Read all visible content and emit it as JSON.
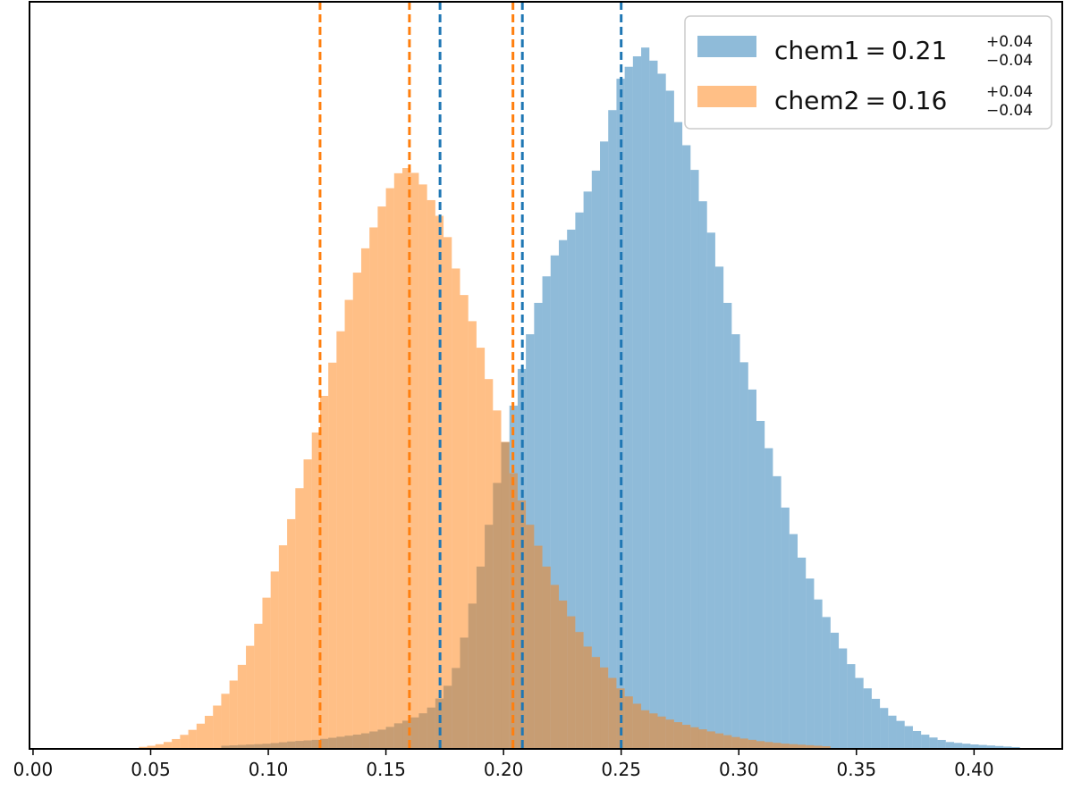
{
  "chart_data": {
    "type": "histogram",
    "x_ticks": [
      "0.00",
      "0.05",
      "0.10",
      "0.15",
      "0.20",
      "0.25",
      "0.30",
      "0.35",
      "0.40"
    ],
    "xlim": [
      -0.0015,
      0.4375
    ],
    "ylim": [
      0,
      1.0
    ],
    "y_axis_visible": false,
    "grid": false,
    "legend_position": "top-right",
    "bin_width": 0.0035,
    "series": [
      {
        "name": "chem1",
        "label_value": "0.21",
        "label_sup": "+0.04",
        "label_sub": "−0.04",
        "color": "#1f77b4",
        "fill": "#8fbbd9",
        "dashed_lines_x": [
          0.173,
          0.208,
          0.25
        ],
        "hist": [
          [
            0.08,
            0.004
          ],
          [
            0.1,
            0.007
          ],
          [
            0.11,
            0.01
          ],
          [
            0.12,
            0.012
          ],
          [
            0.13,
            0.016
          ],
          [
            0.14,
            0.02
          ],
          [
            0.15,
            0.027
          ],
          [
            0.155,
            0.034
          ],
          [
            0.16,
            0.039
          ],
          [
            0.165,
            0.046
          ],
          [
            0.17,
            0.057
          ],
          [
            0.175,
            0.076
          ],
          [
            0.18,
            0.11
          ],
          [
            0.185,
            0.17
          ],
          [
            0.19,
            0.24
          ],
          [
            0.195,
            0.32
          ],
          [
            0.2,
            0.4
          ],
          [
            0.205,
            0.47
          ],
          [
            0.21,
            0.54
          ],
          [
            0.215,
            0.6
          ],
          [
            0.22,
            0.65
          ],
          [
            0.225,
            0.68
          ],
          [
            0.23,
            0.7
          ],
          [
            0.24,
            0.78
          ],
          [
            0.25,
            0.9
          ],
          [
            0.26,
            0.94
          ],
          [
            0.27,
            0.89
          ],
          [
            0.275,
            0.83
          ],
          [
            0.28,
            0.79
          ],
          [
            0.285,
            0.73
          ],
          [
            0.29,
            0.67
          ],
          [
            0.295,
            0.6
          ],
          [
            0.3,
            0.54
          ],
          [
            0.305,
            0.49
          ],
          [
            0.31,
            0.43
          ],
          [
            0.315,
            0.38
          ],
          [
            0.32,
            0.32
          ],
          [
            0.325,
            0.27
          ],
          [
            0.33,
            0.23
          ],
          [
            0.335,
            0.19
          ],
          [
            0.34,
            0.16
          ],
          [
            0.345,
            0.13
          ],
          [
            0.35,
            0.1
          ],
          [
            0.355,
            0.08
          ],
          [
            0.36,
            0.06
          ],
          [
            0.365,
            0.045
          ],
          [
            0.37,
            0.035
          ],
          [
            0.375,
            0.025
          ],
          [
            0.38,
            0.018
          ],
          [
            0.385,
            0.013
          ],
          [
            0.39,
            0.009
          ],
          [
            0.4,
            0.006
          ],
          [
            0.41,
            0.004
          ],
          [
            0.42,
            0.002
          ]
        ]
      },
      {
        "name": "chem2",
        "label_value": "0.16",
        "label_sup": "+0.04",
        "label_sub": "−0.04",
        "color": "#ff7f0e",
        "fill": "#ffbf86",
        "dashed_lines_x": [
          0.122,
          0.16,
          0.204
        ],
        "hist": [
          [
            0.045,
            0.002
          ],
          [
            0.05,
            0.004
          ],
          [
            0.055,
            0.007
          ],
          [
            0.06,
            0.012
          ],
          [
            0.065,
            0.02
          ],
          [
            0.07,
            0.03
          ],
          [
            0.075,
            0.045
          ],
          [
            0.08,
            0.065
          ],
          [
            0.085,
            0.09
          ],
          [
            0.09,
            0.12
          ],
          [
            0.095,
            0.16
          ],
          [
            0.1,
            0.21
          ],
          [
            0.105,
            0.26
          ],
          [
            0.11,
            0.31
          ],
          [
            0.115,
            0.37
          ],
          [
            0.12,
            0.42
          ],
          [
            0.125,
            0.49
          ],
          [
            0.13,
            0.55
          ],
          [
            0.135,
            0.61
          ],
          [
            0.14,
            0.66
          ],
          [
            0.145,
            0.7
          ],
          [
            0.15,
            0.74
          ],
          [
            0.155,
            0.77
          ],
          [
            0.16,
            0.78
          ],
          [
            0.165,
            0.76
          ],
          [
            0.17,
            0.73
          ],
          [
            0.175,
            0.7
          ],
          [
            0.18,
            0.64
          ],
          [
            0.185,
            0.59
          ],
          [
            0.19,
            0.54
          ],
          [
            0.195,
            0.48
          ],
          [
            0.2,
            0.42
          ],
          [
            0.205,
            0.36
          ],
          [
            0.21,
            0.31
          ],
          [
            0.215,
            0.27
          ],
          [
            0.22,
            0.23
          ],
          [
            0.225,
            0.2
          ],
          [
            0.23,
            0.17
          ],
          [
            0.235,
            0.14
          ],
          [
            0.24,
            0.12
          ],
          [
            0.245,
            0.1
          ],
          [
            0.25,
            0.08
          ],
          [
            0.255,
            0.065
          ],
          [
            0.26,
            0.052
          ],
          [
            0.27,
            0.04
          ],
          [
            0.28,
            0.03
          ],
          [
            0.29,
            0.022
          ],
          [
            0.3,
            0.015
          ],
          [
            0.31,
            0.01
          ],
          [
            0.32,
            0.007
          ],
          [
            0.33,
            0.005
          ],
          [
            0.34,
            0.003
          ]
        ]
      }
    ]
  }
}
